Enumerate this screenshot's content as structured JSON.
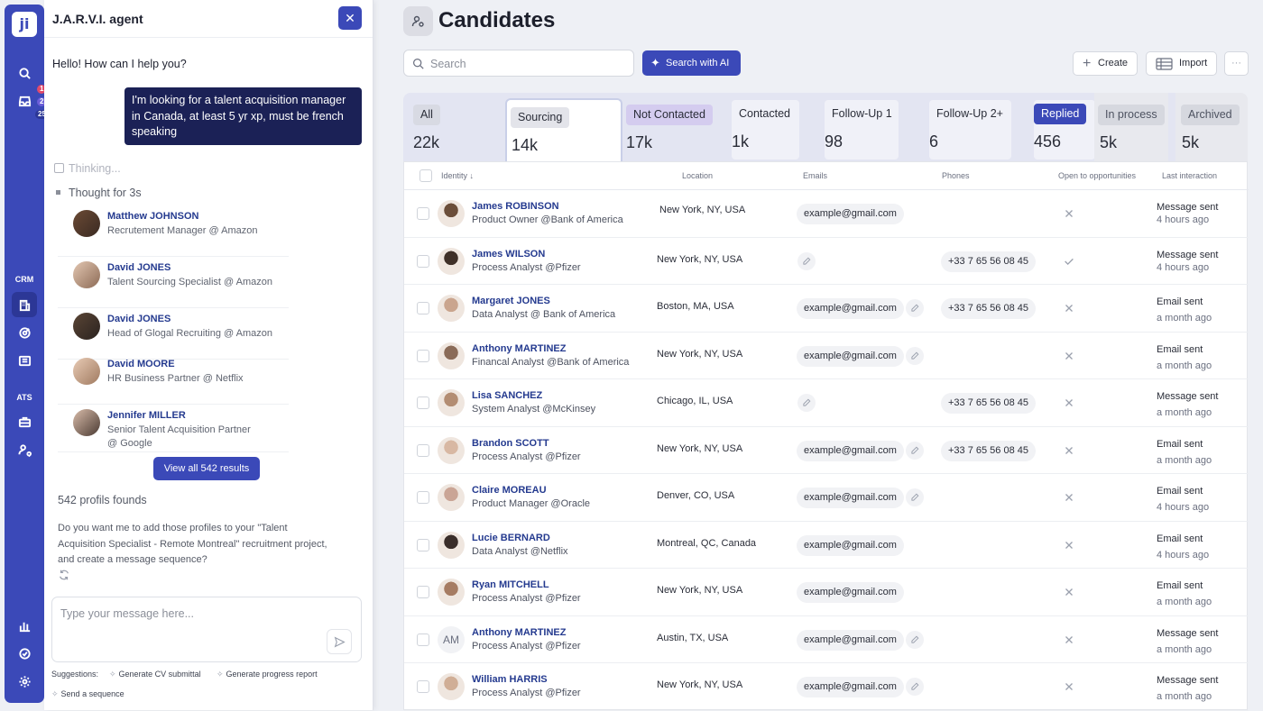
{
  "rail": {
    "logo": "ji",
    "badges": [
      "1",
      "2",
      "25"
    ],
    "sections": {
      "crm": "CRM",
      "ats": "ATS"
    }
  },
  "chat": {
    "title": "J.A.R.V.I. agent",
    "greeting": "Hello! How can I help you?",
    "user_message": "I'm looking for a talent acquisition manager in Canada, at least 5 yr xp, must be french speaking",
    "thinking": "Thinking...",
    "thought": "Thought for 3s",
    "results": [
      {
        "name": "Matthew JOHNSON",
        "role": "Recrutement Manager @ Amazon"
      },
      {
        "name": "David JONES",
        "role": "Talent Sourcing Specialist @ Amazon"
      },
      {
        "name": "David JONES",
        "role": "Head of Glogal Recruiting @ Amazon"
      },
      {
        "name": "David MOORE",
        "role": "HR Business Partner @ Netflix"
      },
      {
        "name": "Jennifer MILLER",
        "role": "Senior Talent Acquisition Partner @ Google"
      }
    ],
    "view_all": "View all 542 results",
    "count": "542 profils founds",
    "question": "Do you want me to add those profiles to your \"Talent Acquisition Specialist - Remote Montreal\" recruitment project, and create a message sequence?",
    "input_placeholder": "Type your message here...",
    "suggestions_label": "Suggestions:",
    "suggestions": [
      "Generate CV submittal",
      "Generate progress report",
      "Send a sequence"
    ]
  },
  "page": {
    "title": "Candidates",
    "search_placeholder": "Search",
    "search_ai": "Search with AI",
    "create": "Create",
    "import": "Import",
    "more": "···"
  },
  "tabs": [
    {
      "label": "All",
      "value": "22k"
    },
    {
      "label": "Sourcing",
      "value": "14k"
    },
    {
      "label": "Not Contacted",
      "value": "17k"
    },
    {
      "label": "Contacted",
      "value": "1k"
    },
    {
      "label": "Follow-Up 1",
      "value": "98"
    },
    {
      "label": "Follow-Up 2+",
      "value": "6"
    },
    {
      "label": "Replied",
      "value": "456"
    },
    {
      "label": "In process",
      "value": "5k"
    },
    {
      "label": "Archived",
      "value": "5k"
    }
  ],
  "table": {
    "headers": {
      "identity": "Identity",
      "location": "Location",
      "emails": "Emails",
      "phones": "Phones",
      "open": "Open to opportunities",
      "last": "Last interaction"
    },
    "rows": [
      {
        "name": "James ROBINSON",
        "title": "Product Owner @Bank of America",
        "location": "New York, NY, USA",
        "email": "example@gmail.com",
        "phone": "",
        "open": "x",
        "last": "Message sent",
        "when": "4 hours ago"
      },
      {
        "name": "James WILSON",
        "title": "Process Analyst @Pfizer",
        "location": "New York, NY, USA",
        "email": "",
        "phone": "+33 7 65 56 08 45",
        "open": "check",
        "last": "Message sent",
        "when": "4 hours ago"
      },
      {
        "name": "Margaret JONES",
        "title": "Data Analyst @ Bank of America",
        "location": "Boston, MA, USA",
        "email": "example@gmail.com",
        "phone": "+33 7 65 56 08 45",
        "open": "x",
        "last": "Email sent",
        "when": "a month ago"
      },
      {
        "name": "Anthony MARTINEZ",
        "title": "Financal Analyst @Bank of America",
        "location": "New York, NY, USA",
        "email": "example@gmail.com",
        "phone": "",
        "open": "x",
        "last": "Email sent",
        "when": "a month ago"
      },
      {
        "name": "Lisa SANCHEZ",
        "title": "System Analyst @McKinsey",
        "location": "Chicago, IL, USA",
        "email": "",
        "phone": "+33 7 65 56 08 45",
        "open": "x",
        "last": "Message sent",
        "when": "a month ago"
      },
      {
        "name": "Brandon SCOTT",
        "title": "Process Analyst @Pfizer",
        "location": "New York, NY, USA",
        "email": "example@gmail.com",
        "phone": "+33 7 65 56 08 45",
        "open": "x",
        "last": "Email sent",
        "when": "a month ago"
      },
      {
        "name": "Claire MOREAU",
        "title": "Product Manager @Oracle",
        "location": "Denver, CO, USA",
        "email": "example@gmail.com",
        "phone": "",
        "open": "x",
        "last": "Email sent",
        "when": "4 hours ago"
      },
      {
        "name": "Lucie BERNARD",
        "title": "Data Analyst @Netflix",
        "location": "Montreal, QC, Canada",
        "email": "example@gmail.com",
        "phone": "",
        "open": "x",
        "last": "Email sent",
        "when": "4 hours ago"
      },
      {
        "name": "Ryan MITCHELL",
        "title": "Process Analyst @Pfizer",
        "location": "New York, NY, USA",
        "email": "example@gmail.com",
        "phone": "",
        "open": "x",
        "last": "Email sent",
        "when": "a month ago"
      },
      {
        "name": "Anthony MARTINEZ",
        "title": "Process Analyst @Pfizer",
        "location": "Austin, TX, USA",
        "email": "example@gmail.com",
        "phone": "",
        "open": "x",
        "last": "Message sent",
        "when": "a month ago",
        "initials": "AM"
      },
      {
        "name": "William HARRIS",
        "title": "Process Analyst @Pfizer",
        "location": "New York, NY, USA",
        "email": "example@gmail.com",
        "phone": "",
        "open": "x",
        "last": "Message sent",
        "when": "a month ago"
      }
    ]
  },
  "colors": {
    "accent": "#3b49b8",
    "navy": "#1b2156",
    "name_blue": "#243a8f",
    "replied": "#3b49b8"
  }
}
